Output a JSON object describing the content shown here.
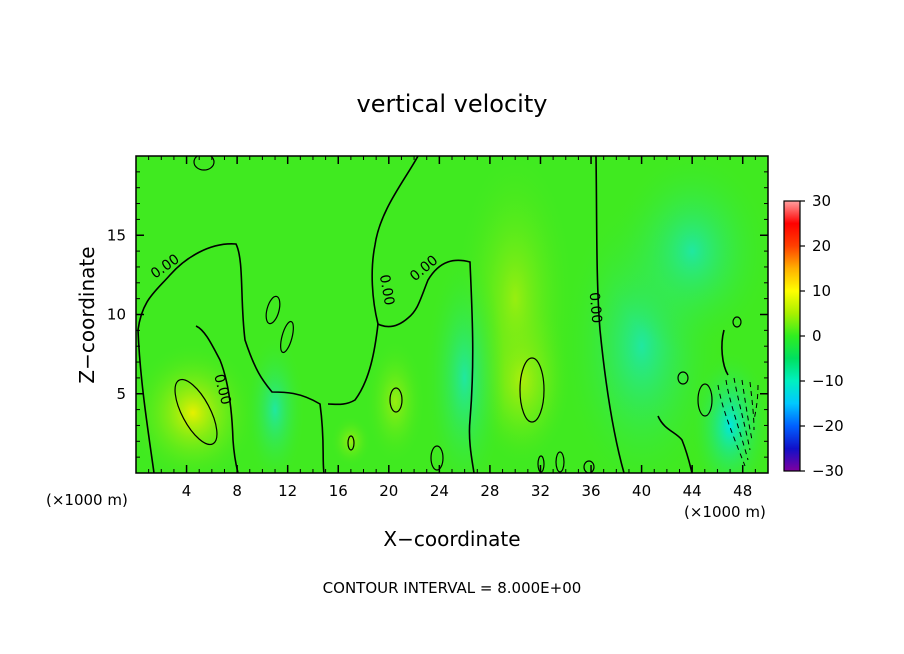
{
  "chart_data": {
    "type": "heatmap",
    "title": "vertical velocity",
    "xlabel": "X−coordinate",
    "ylabel": "Z−coordinate",
    "x_unit_left": "(×1000 m)",
    "x_unit_right": "(×1000 m)",
    "footer": "CONTOUR INTERVAL = 8.000E+00",
    "xlim": [
      0,
      50
    ],
    "ylim": [
      0,
      20
    ],
    "x_ticks": [
      4,
      8,
      12,
      16,
      20,
      24,
      28,
      32,
      36,
      40,
      44,
      48
    ],
    "x_tick_labels": [
      "4",
      "8",
      "12",
      "16",
      "20",
      "24",
      "28",
      "32",
      "36",
      "40",
      "44",
      "48"
    ],
    "y_ticks": [
      5,
      10,
      15
    ],
    "y_tick_labels": [
      "5",
      "10",
      "15"
    ],
    "colorbar": {
      "range": [
        -30,
        30
      ],
      "ticks": [
        30,
        20,
        10,
        0,
        -10,
        -20,
        -30
      ],
      "tick_labels": [
        "30",
        "20",
        "10",
        "0",
        "−10",
        "−20",
        "−30"
      ],
      "colors": [
        "#7f00a0",
        "#1010c8",
        "#0060ff",
        "#00c8ff",
        "#00f0c0",
        "#00e060",
        "#30ee20",
        "#a8f000",
        "#ffff00",
        "#ffb000",
        "#ff4000",
        "#ff0000",
        "#ffa0a0"
      ]
    },
    "background_value": 3,
    "features": [
      {
        "x": 4.5,
        "z": 3.8,
        "rx": 3.2,
        "rz": 2.8,
        "value": 10
      },
      {
        "x": 30.5,
        "z": 6.0,
        "rx": 2.5,
        "rz": 3.5,
        "value": 10
      },
      {
        "x": 30.0,
        "z": 11.0,
        "rx": 3.0,
        "rz": 6.0,
        "value": 6
      },
      {
        "x": 20.5,
        "z": 4.5,
        "rx": 1.5,
        "rz": 2.5,
        "value": 8
      },
      {
        "x": 17.0,
        "z": 2.0,
        "rx": 1.0,
        "rz": 1.0,
        "value": 6
      },
      {
        "x": 11.0,
        "z": 4.0,
        "rx": 1.5,
        "rz": 3.0,
        "value": -4
      },
      {
        "x": 26.0,
        "z": 6.0,
        "rx": 2.0,
        "rz": 5.0,
        "value": -3
      },
      {
        "x": 40.0,
        "z": 8.0,
        "rx": 4.0,
        "rz": 6.0,
        "value": -2
      },
      {
        "x": 47.0,
        "z": 3.0,
        "rx": 2.0,
        "rz": 3.0,
        "value": -9
      },
      {
        "x": 44.0,
        "z": 14.0,
        "rx": 4.0,
        "rz": 4.0,
        "value": -1
      }
    ],
    "contour_labels": [
      {
        "text": "0.00",
        "x": 2.5,
        "z": 12.8,
        "angle": -35
      },
      {
        "text": "0.00",
        "x": 6.5,
        "z": 5.2,
        "angle": 75
      },
      {
        "text": "0.00",
        "x": 19.5,
        "z": 11.5,
        "angle": 80
      },
      {
        "text": "0.00",
        "x": 23.0,
        "z": 12.7,
        "angle": -40
      },
      {
        "text": "0.00",
        "x": 36.0,
        "z": 10.4,
        "angle": 85
      }
    ]
  }
}
